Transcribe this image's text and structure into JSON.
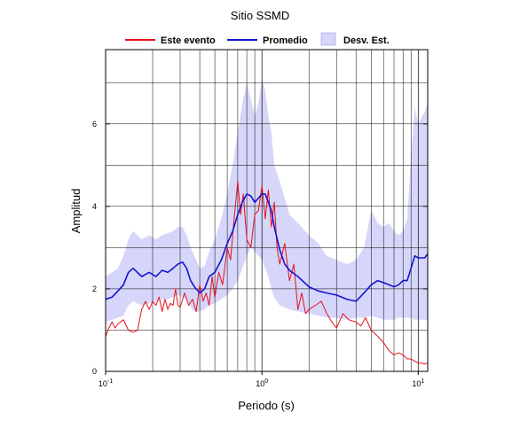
{
  "chart_data": {
    "type": "line",
    "title": "Sitio SSMD",
    "xlabel": "Periodo (s)",
    "ylabel": "Amplitud",
    "x_scale": "log",
    "xlim": [
      0.1,
      11.5
    ],
    "ylim": [
      0,
      7.8
    ],
    "grid": true,
    "legend_position": "top",
    "x_ticks": [
      {
        "value": 0.1,
        "base": "10",
        "exp": "-1"
      },
      {
        "value": 1,
        "base": "10",
        "exp": "0"
      },
      {
        "value": 10,
        "base": "10",
        "exp": "1"
      }
    ],
    "y_ticks": [
      {
        "value": 0,
        "label": "0"
      },
      {
        "value": 2,
        "label": "2"
      },
      {
        "value": 4,
        "label": "4"
      },
      {
        "value": 6,
        "label": "6"
      }
    ],
    "colors": {
      "event": "#e8101a",
      "mean": "#1414d2",
      "band_fill": "#d6d6fa",
      "grid": "#000000"
    },
    "legend": {
      "event_label": "Este evento",
      "mean_label": "Promedio",
      "band_label": "Desv. Est."
    },
    "series": [
      {
        "name": "Este evento",
        "x": [
          0.1,
          0.105,
          0.11,
          0.115,
          0.12,
          0.13,
          0.14,
          0.15,
          0.16,
          0.17,
          0.18,
          0.19,
          0.2,
          0.21,
          0.22,
          0.23,
          0.24,
          0.25,
          0.26,
          0.27,
          0.28,
          0.29,
          0.3,
          0.32,
          0.34,
          0.36,
          0.38,
          0.4,
          0.42,
          0.44,
          0.46,
          0.48,
          0.5,
          0.53,
          0.56,
          0.6,
          0.63,
          0.66,
          0.7,
          0.73,
          0.76,
          0.8,
          0.85,
          0.9,
          0.95,
          1.0,
          1.05,
          1.1,
          1.15,
          1.2,
          1.25,
          1.3,
          1.4,
          1.5,
          1.6,
          1.7,
          1.8,
          1.9,
          2.0,
          2.2,
          2.4,
          2.6,
          2.8,
          3.0,
          3.3,
          3.6,
          4.0,
          4.3,
          4.6,
          5.0,
          5.5,
          6.0,
          6.5,
          7.0,
          7.5,
          8.0,
          8.5,
          9.0,
          9.5,
          10.0,
          10.5,
          11.0,
          11.5
        ],
        "y": [
          0.85,
          1.05,
          1.2,
          1.05,
          1.15,
          1.25,
          1.0,
          0.95,
          1.0,
          1.5,
          1.7,
          1.5,
          1.7,
          1.6,
          1.8,
          1.45,
          1.75,
          1.5,
          1.65,
          1.6,
          2.0,
          1.6,
          1.55,
          1.9,
          1.6,
          1.75,
          1.45,
          2.1,
          1.7,
          1.9,
          1.6,
          2.3,
          1.8,
          2.4,
          2.1,
          3.0,
          2.7,
          3.6,
          4.6,
          3.8,
          4.3,
          3.2,
          3.0,
          3.8,
          3.9,
          4.5,
          3.7,
          4.4,
          3.5,
          4.1,
          3.0,
          2.6,
          3.1,
          2.2,
          2.6,
          1.5,
          1.9,
          1.4,
          1.5,
          1.6,
          1.7,
          1.4,
          1.2,
          1.05,
          1.4,
          1.25,
          1.2,
          1.1,
          1.3,
          1.0,
          0.85,
          0.7,
          0.5,
          0.4,
          0.45,
          0.4,
          0.3,
          0.3,
          0.25,
          0.2,
          0.2,
          0.18,
          0.2
        ]
      },
      {
        "name": "Promedio",
        "x": [
          0.1,
          0.11,
          0.12,
          0.13,
          0.14,
          0.15,
          0.17,
          0.19,
          0.21,
          0.23,
          0.25,
          0.27,
          0.29,
          0.31,
          0.33,
          0.35,
          0.37,
          0.4,
          0.43,
          0.46,
          0.5,
          0.55,
          0.6,
          0.65,
          0.7,
          0.75,
          0.8,
          0.85,
          0.9,
          0.95,
          1.0,
          1.05,
          1.1,
          1.15,
          1.2,
          1.3,
          1.4,
          1.5,
          1.7,
          2.0,
          2.3,
          2.6,
          3.0,
          3.5,
          4.0,
          4.5,
          5.0,
          5.5,
          6.0,
          6.5,
          7.0,
          7.5,
          8.0,
          8.5,
          9.0,
          9.5,
          10.0,
          11.0,
          11.5
        ],
        "y": [
          1.75,
          1.8,
          1.95,
          2.1,
          2.4,
          2.5,
          2.3,
          2.4,
          2.3,
          2.45,
          2.4,
          2.5,
          2.6,
          2.65,
          2.5,
          2.2,
          2.05,
          1.9,
          2.0,
          2.3,
          2.4,
          2.7,
          3.1,
          3.4,
          3.8,
          4.1,
          4.3,
          4.25,
          4.1,
          4.2,
          4.3,
          4.3,
          4.1,
          3.9,
          3.5,
          2.95,
          2.6,
          2.45,
          2.3,
          2.05,
          1.95,
          1.9,
          1.85,
          1.75,
          1.7,
          1.9,
          2.1,
          2.2,
          2.15,
          2.1,
          2.05,
          2.1,
          2.2,
          2.2,
          2.5,
          2.8,
          2.75,
          2.75,
          2.85
        ]
      }
    ],
    "band": {
      "name": "Desv. Est.",
      "x": [
        0.1,
        0.11,
        0.12,
        0.13,
        0.14,
        0.15,
        0.17,
        0.19,
        0.21,
        0.23,
        0.25,
        0.27,
        0.29,
        0.31,
        0.33,
        0.35,
        0.37,
        0.4,
        0.43,
        0.46,
        0.5,
        0.55,
        0.6,
        0.65,
        0.7,
        0.75,
        0.8,
        0.85,
        0.9,
        0.95,
        1.0,
        1.05,
        1.1,
        1.15,
        1.2,
        1.3,
        1.4,
        1.5,
        1.7,
        2.0,
        2.3,
        2.6,
        3.0,
        3.5,
        4.0,
        4.5,
        5.0,
        5.5,
        6.0,
        6.5,
        7.0,
        7.5,
        8.0,
        8.5,
        9.0,
        9.5,
        10.0,
        11.0,
        11.5
      ],
      "lower": [
        1.2,
        1.25,
        1.3,
        1.35,
        1.6,
        1.7,
        1.6,
        1.65,
        1.7,
        1.75,
        1.75,
        1.8,
        1.85,
        1.8,
        1.75,
        1.55,
        1.45,
        1.45,
        1.5,
        1.6,
        1.65,
        1.75,
        1.85,
        2.0,
        2.2,
        2.5,
        2.8,
        3.0,
        2.9,
        2.8,
        2.7,
        2.5,
        2.3,
        2.0,
        1.8,
        1.6,
        1.55,
        1.5,
        1.45,
        1.4,
        1.35,
        1.3,
        1.3,
        1.25,
        1.3,
        1.3,
        1.35,
        1.3,
        1.25,
        1.25,
        1.25,
        1.3,
        1.3,
        1.3,
        1.3,
        1.25,
        1.25,
        1.25,
        1.25
      ],
      "upper": [
        2.3,
        2.4,
        2.5,
        2.8,
        3.2,
        3.4,
        3.2,
        3.3,
        3.2,
        3.3,
        3.35,
        3.4,
        3.5,
        3.5,
        3.3,
        3.0,
        2.8,
        2.5,
        2.55,
        2.9,
        3.2,
        3.7,
        4.3,
        5.0,
        5.8,
        6.5,
        7.0,
        6.6,
        6.2,
        6.5,
        7.1,
        6.8,
        6.2,
        5.8,
        5.0,
        4.6,
        4.2,
        3.8,
        3.6,
        3.3,
        3.1,
        2.8,
        2.7,
        2.6,
        2.7,
        3.0,
        3.9,
        3.6,
        3.5,
        3.6,
        3.4,
        3.3,
        3.4,
        3.7,
        5.2,
        6.4,
        6.0,
        6.3,
        6.5
      ]
    }
  }
}
